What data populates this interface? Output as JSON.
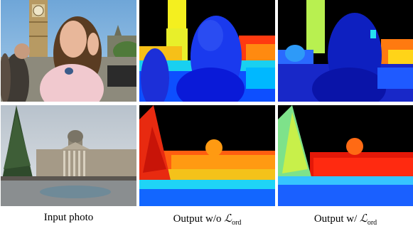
{
  "figure": {
    "captions": {
      "input": "Input photo",
      "without": "Output w/o ",
      "with": "Output w/ ",
      "loss_symbol": "ℒ",
      "loss_subscript": "ord"
    },
    "colormap": "jet",
    "colors": {
      "sky_depth": "#000000",
      "near_depth": "#0a1ad8",
      "far_depth": "#e0201a"
    }
  }
}
